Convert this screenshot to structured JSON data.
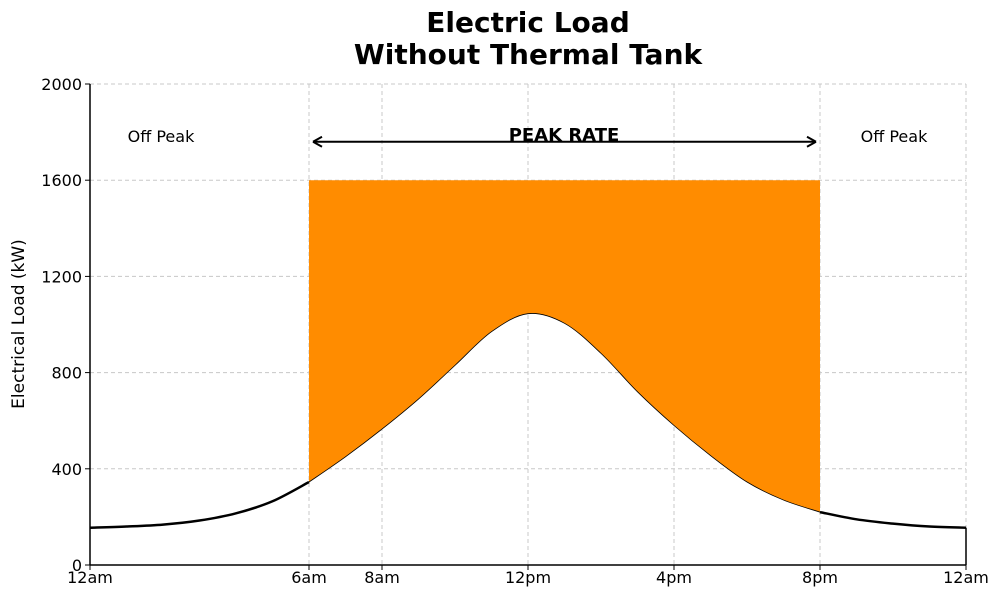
{
  "chart_data": {
    "type": "area",
    "title": [
      "Electric Load",
      "Without Thermal Tank"
    ],
    "ylabel": "Electrical Load (kW)",
    "xlabel": "",
    "x_range": [
      0,
      24
    ],
    "ylim": [
      0,
      2000
    ],
    "x_ticks": [
      {
        "value": 0,
        "label": "12am"
      },
      {
        "value": 6,
        "label": "6am"
      },
      {
        "value": 8,
        "label": "8am"
      },
      {
        "value": 12,
        "label": "12pm"
      },
      {
        "value": 16,
        "label": "4pm"
      },
      {
        "value": 20,
        "label": "8pm"
      },
      {
        "value": 24,
        "label": "12am"
      }
    ],
    "y_ticks": [
      0,
      400,
      800,
      1200,
      1600,
      2000
    ],
    "grid": true,
    "series": [
      {
        "color": "#000000",
        "x": [
          0,
          1,
          2,
          3,
          4,
          5,
          6,
          7,
          8,
          9,
          10,
          11,
          12,
          13,
          14,
          15,
          16,
          17,
          18,
          19,
          20,
          21,
          22,
          23,
          24
        ],
        "y": [
          155,
          160,
          168,
          185,
          215,
          265,
          345,
          450,
          565,
          690,
          830,
          970,
          1045,
          1005,
          880,
          720,
          580,
          455,
          345,
          270,
          220,
          190,
          172,
          160,
          155
        ]
      }
    ],
    "fill_region": {
      "x_start": 6,
      "x_end": 20,
      "top": 1600,
      "color": "#ff8c00"
    },
    "annotations": {
      "left": "Off Peak",
      "center": "PEAK RATE",
      "right": "Off Peak",
      "arrow_y": 1760
    }
  }
}
